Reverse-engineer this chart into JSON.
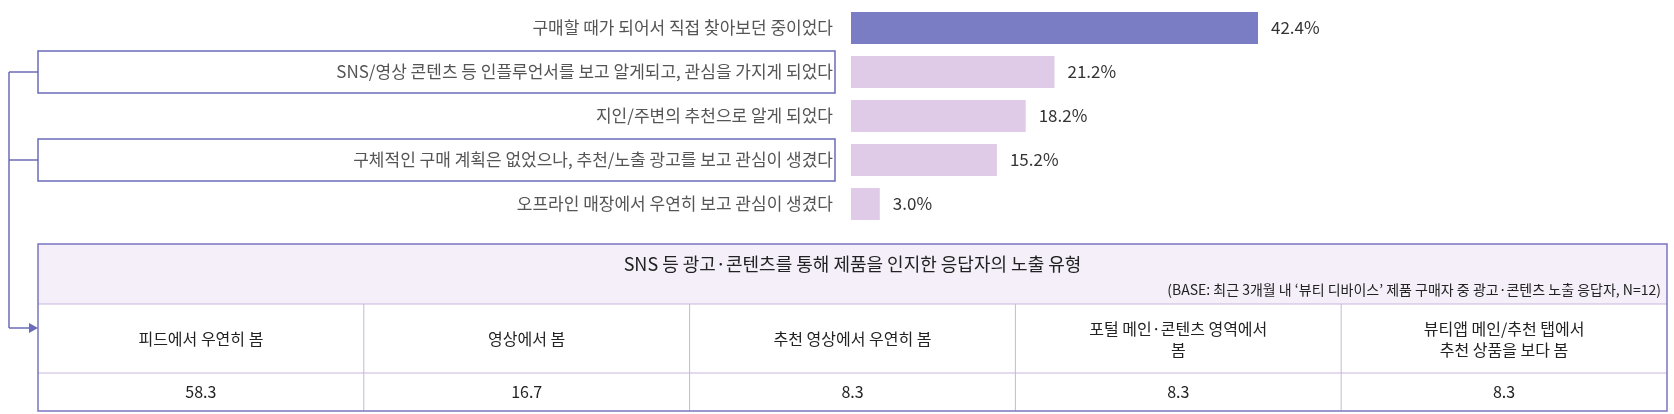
{
  "chart_data": [
    {
      "type": "bar",
      "orientation": "horizontal",
      "categories": [
        "구매할 때가 되어서 직접 찾아보던 중이었다",
        "SNS/영상 콘텐츠 등 인플루언서를 보고 알게되고, 관심을 가지게 되었다",
        "지인/주변의 추천으로 알게 되었다",
        "구체적인 구매 계획은 없었으나, 추천/노출 광고를 보고 관심이 생겼다",
        "오프라인 매장에서 우연히 보고 관심이 생겼다"
      ],
      "values": [
        42.4,
        21.2,
        18.2,
        15.2,
        3.0
      ],
      "colors": [
        "#7b7dc4",
        "#dfcbe8",
        "#dfcbe8",
        "#dfcbe8",
        "#dfcbe8"
      ],
      "value_labels": [
        "42.4%",
        "21.2%",
        "18.2%",
        "15.2%",
        "3.0%"
      ]
    },
    {
      "type": "other",
      "title": "SNS 등 광고·콘텐츠를 통해 제품을 인지한 응답자의 노출 유형",
      "subtitle": "(BASE: 최근 3개월 내 ‘뷰티 디바이스’ 제품 구매자 중 광고·콘텐츠 노출 응답자, N=12)",
      "categories": [
        "피드에서 우연히 봄",
        "영상에서 봄",
        "추천 영상에서 우연히 봄",
        "포털 메인·콘텐츠 영역에서 봄",
        "뷰티앱 메인/추천 탭에서 추천 상품을 보다 봄"
      ],
      "values": [
        58.3,
        16.7,
        8.3,
        8.3,
        8.3
      ],
      "data_labels": true
    }
  ]
}
